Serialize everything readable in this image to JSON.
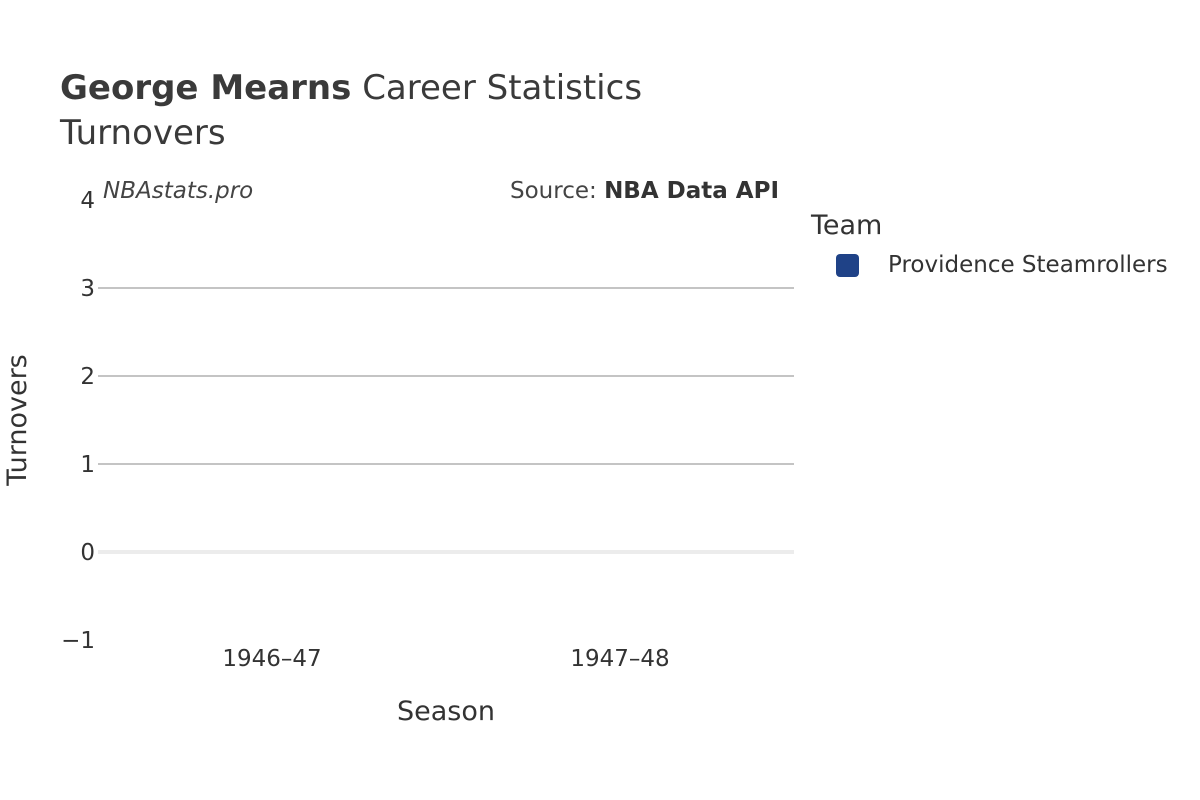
{
  "header": {
    "player_name": "George Mearns",
    "title_suffix": "Career Statistics",
    "subtitle": "Turnovers"
  },
  "watermark": "NBAstats.pro",
  "source": {
    "prefix": "Source:",
    "name": "NBA Data API"
  },
  "legend": {
    "title": "Team",
    "items": [
      {
        "label": "Providence Steamrollers",
        "color": "#1f4287"
      }
    ]
  },
  "chart_data": {
    "type": "bar",
    "title": "George Mearns Career Statistics",
    "subtitle": "Turnovers",
    "xlabel": "Season",
    "ylabel": "Turnovers",
    "categories": [
      "1946–47",
      "1947–48"
    ],
    "series": [
      {
        "name": "Providence Steamrollers",
        "values": [
          null,
          null
        ],
        "color": "#1f4287"
      }
    ],
    "ylim": [
      -1,
      4
    ],
    "yticks": [
      -1,
      0,
      1,
      2,
      3,
      4
    ],
    "ytick_labels": [
      "−1",
      "0",
      "1",
      "2",
      "3",
      "4"
    ],
    "grid": true,
    "legend_position": "right"
  }
}
